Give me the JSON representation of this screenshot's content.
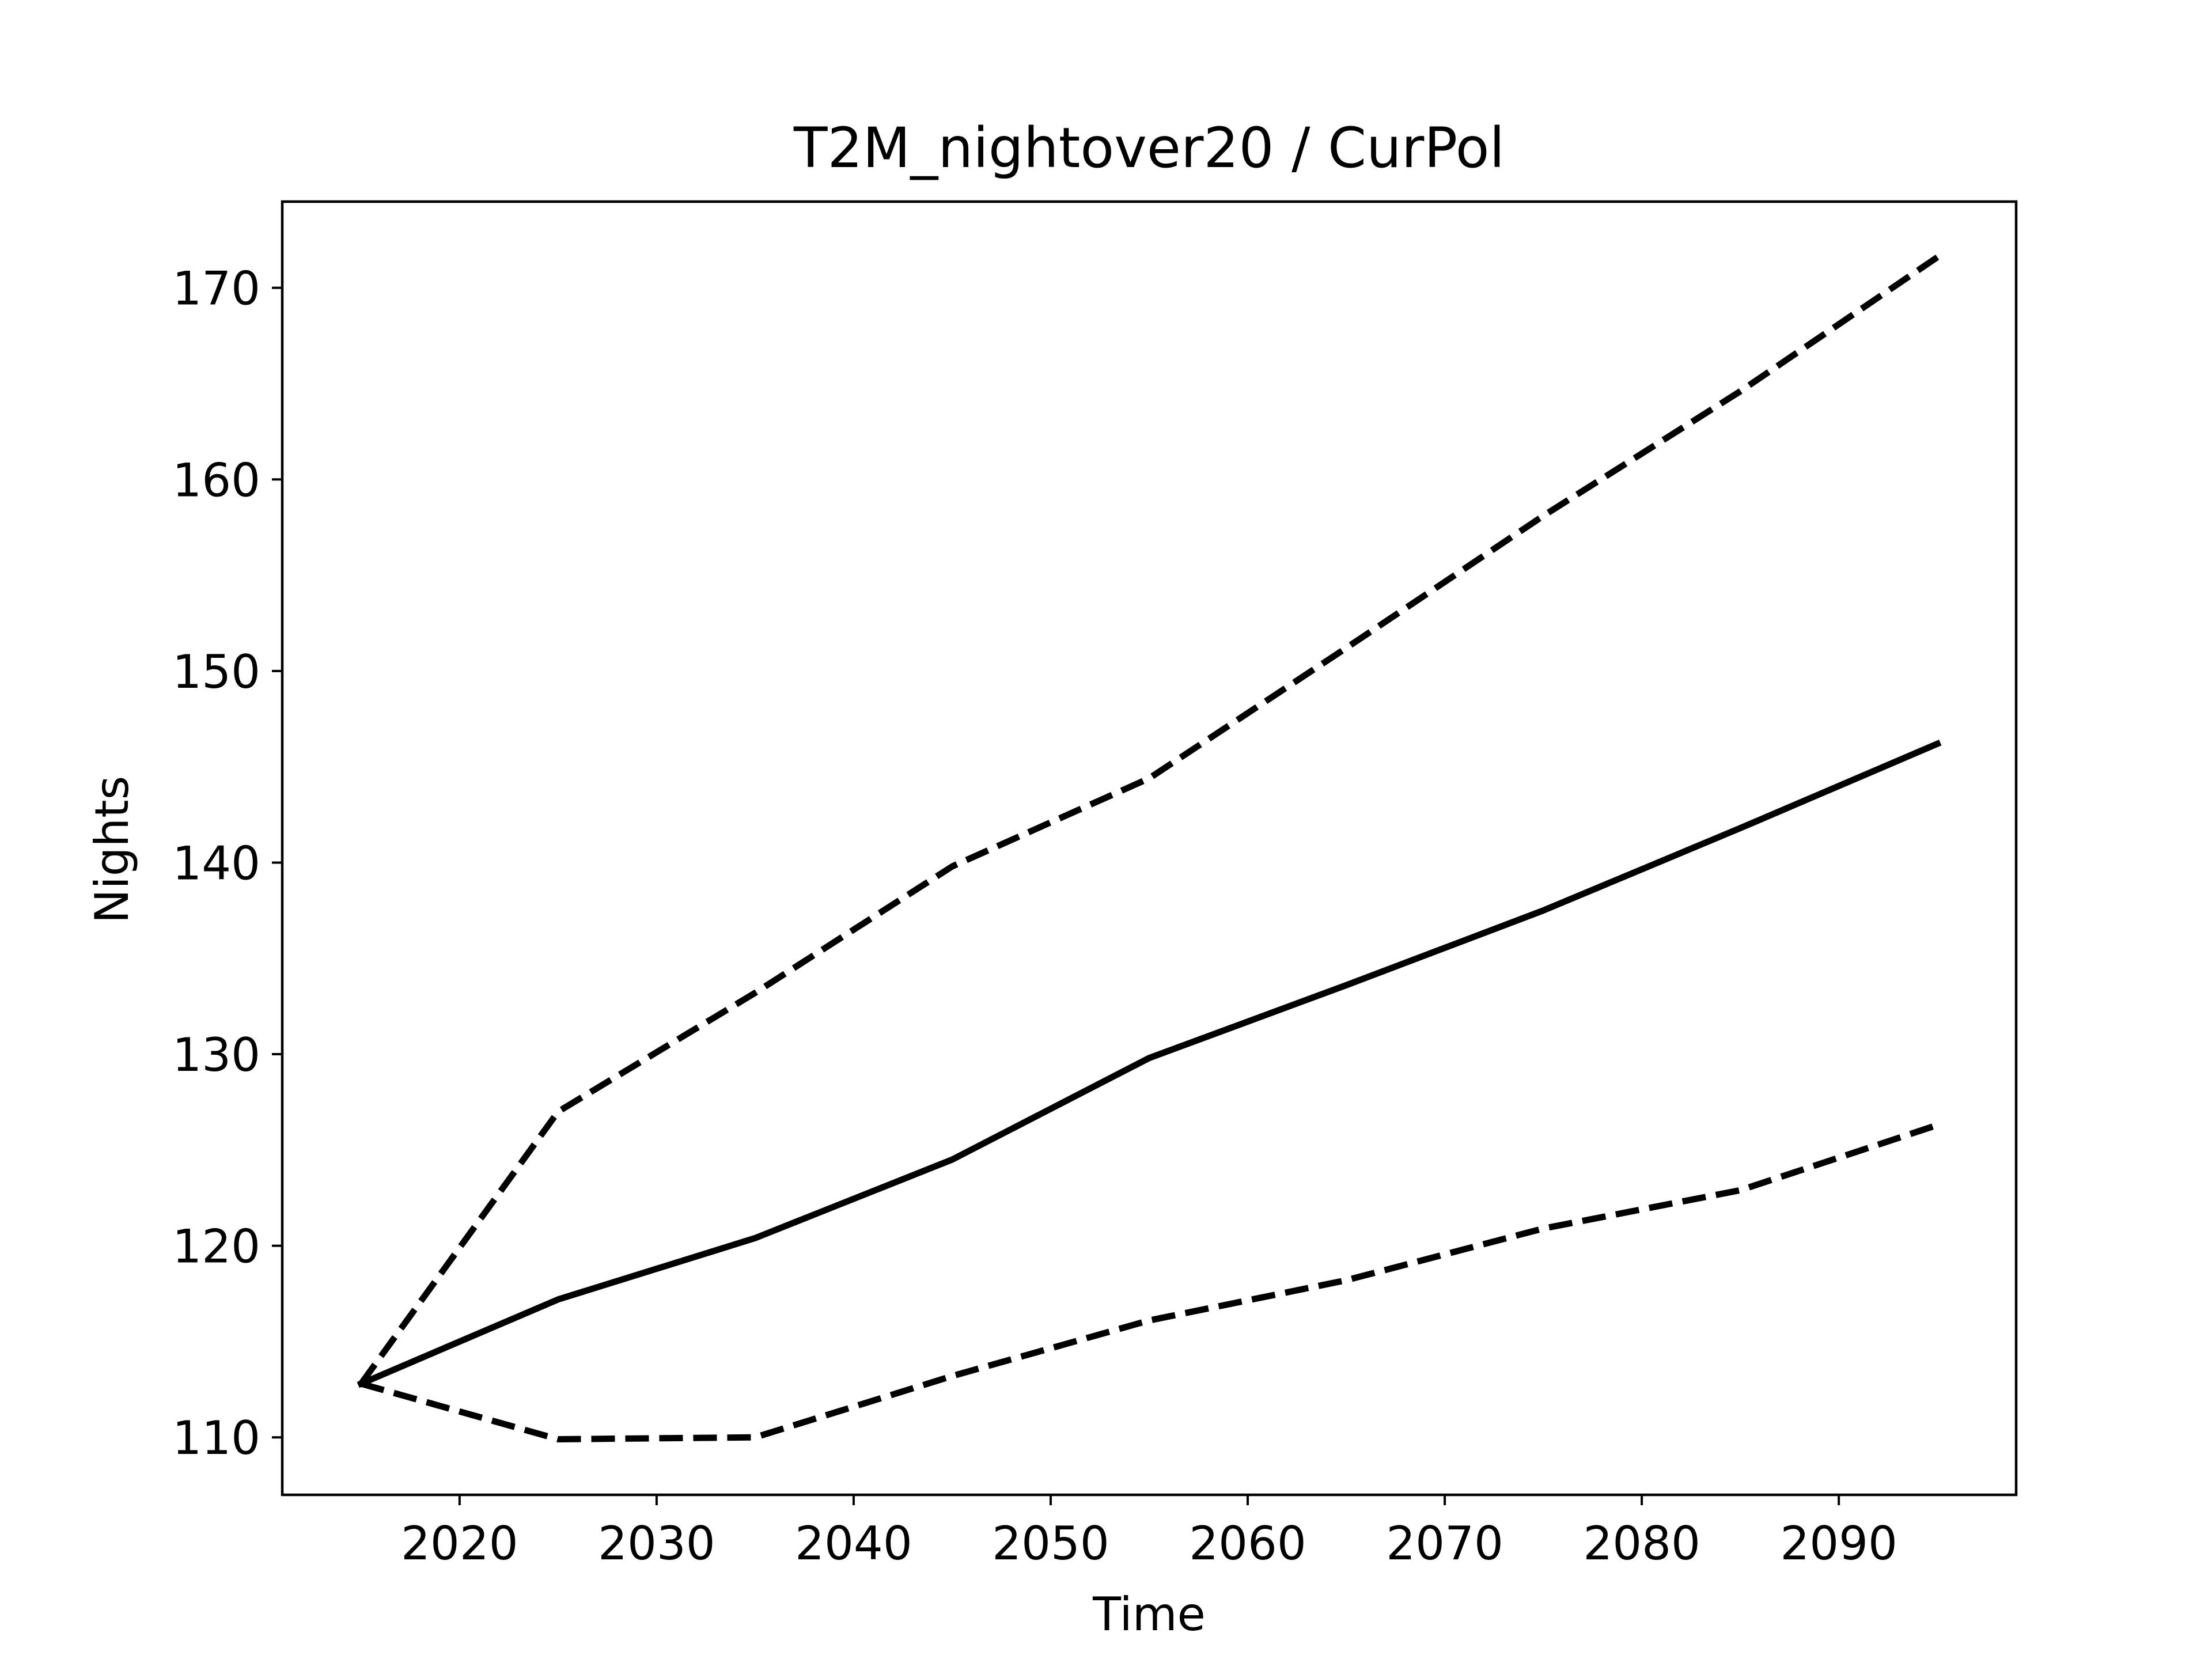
{
  "chart_data": {
    "type": "line",
    "title": "T2M_nightover20 / CurPol",
    "xlabel": "Time",
    "ylabel": "Nights",
    "xlim": [
      2011,
      2099
    ],
    "ylim": [
      107,
      174.5
    ],
    "xticks": [
      2020,
      2030,
      2040,
      2050,
      2060,
      2070,
      2080,
      2090
    ],
    "yticks": [
      110,
      120,
      130,
      140,
      150,
      160,
      170
    ],
    "grid": false,
    "legend": "none",
    "x": [
      2015,
      2025,
      2035,
      2045,
      2055,
      2065,
      2075,
      2085,
      2095
    ],
    "series": [
      {
        "style": "solid",
        "color": "#000000",
        "values": [
          112.8,
          117.2,
          120.4,
          124.5,
          129.8,
          133.6,
          137.5,
          141.8,
          146.2
        ]
      },
      {
        "style": "dashed",
        "color": "#000000",
        "values": [
          112.8,
          127.0,
          133.2,
          139.8,
          144.4,
          151.2,
          158.1,
          164.6,
          171.6
        ]
      },
      {
        "style": "dashed",
        "color": "#000000",
        "values": [
          112.8,
          109.9,
          110.0,
          113.2,
          116.1,
          118.2,
          120.9,
          122.9,
          126.3
        ]
      }
    ]
  }
}
